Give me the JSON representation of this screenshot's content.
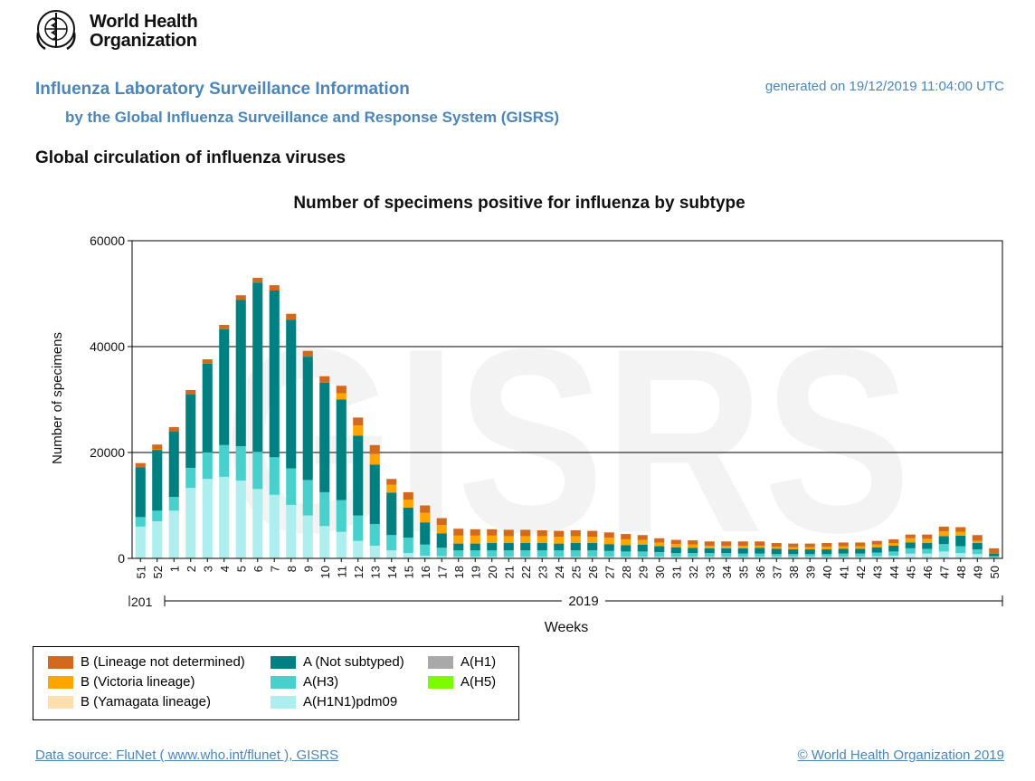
{
  "header": {
    "org_name_line1": "World Health",
    "org_name_line2": "Organization",
    "title": "Influenza Laboratory Surveillance Information",
    "subtitle": "by the Global Influenza Surveillance and Response System (GISRS)",
    "generated": "generated on 19/12/2019 11:04:00 UTC",
    "section_title": "Global circulation of influenza viruses"
  },
  "footer": {
    "data_source": "Data source: FluNet ( www.who.int/flunet ), GISRS",
    "copyright": "© World Health Organization 2019"
  },
  "colors": {
    "b_lineage_nd": "#d2691e",
    "b_victoria": "#ffa500",
    "b_yamagata": "#ffdead",
    "a_not_subtyped": "#008080",
    "a_h3": "#48d1cc",
    "a_h1n1pdm09": "#afeeee",
    "a_h1": "#a9a9a9",
    "a_h5": "#7cfc00",
    "header_blue": "#4a86b9",
    "watermark": "#f3f3f3"
  },
  "chart_data": {
    "type": "bar",
    "stacked": true,
    "title": "Number of specimens positive for influenza by subtype",
    "xlabel": "Weeks",
    "ylabel": "Number of specimens",
    "ylim": [
      0,
      60000
    ],
    "yticks": [
      0,
      20000,
      40000,
      60000
    ],
    "ytick_labels": [
      "0",
      "20000",
      "40000",
      "60000"
    ],
    "grid": true,
    "watermark": "GISRS",
    "year_labels": [
      "201",
      "2019"
    ],
    "categories": [
      "51",
      "52",
      "1",
      "2",
      "3",
      "4",
      "5",
      "6",
      "7",
      "8",
      "9",
      "10",
      "11",
      "12",
      "13",
      "14",
      "15",
      "16",
      "17",
      "18",
      "19",
      "20",
      "21",
      "22",
      "23",
      "24",
      "25",
      "26",
      "27",
      "28",
      "29",
      "30",
      "31",
      "32",
      "33",
      "34",
      "35",
      "36",
      "37",
      "38",
      "39",
      "40",
      "41",
      "42",
      "43",
      "44",
      "45",
      "46",
      "47",
      "48",
      "49",
      "50"
    ],
    "series": [
      {
        "name": "A(H1N1)pdm09",
        "color_key": "a_h1n1pdm09",
        "values": [
          6000,
          7000,
          9000,
          13300,
          15000,
          15400,
          14700,
          13100,
          12000,
          10100,
          8100,
          6100,
          5000,
          3300,
          2400,
          1500,
          1000,
          500,
          400,
          300,
          300,
          300,
          300,
          300,
          300,
          300,
          300,
          300,
          300,
          300,
          300,
          300,
          300,
          300,
          300,
          300,
          300,
          300,
          300,
          300,
          300,
          300,
          300,
          300,
          400,
          500,
          900,
          900,
          1300,
          1000,
          800,
          200
        ]
      },
      {
        "name": "A(H3)",
        "color_key": "a_h3",
        "values": [
          1800,
          2000,
          2600,
          3800,
          5000,
          6000,
          6500,
          7000,
          7100,
          6900,
          6700,
          6400,
          6000,
          4800,
          4100,
          2900,
          2900,
          2100,
          1600,
          1200,
          1200,
          1200,
          1200,
          1200,
          1200,
          1200,
          1200,
          1200,
          1100,
          1000,
          1000,
          900,
          700,
          700,
          700,
          700,
          600,
          600,
          500,
          500,
          500,
          500,
          600,
          600,
          700,
          800,
          1000,
          900,
          1400,
          1300,
          900,
          200
        ]
      },
      {
        "name": "A(Not subtyped)",
        "color_key": "a_not_subtyped",
        "values": [
          9400,
          11500,
          12400,
          13900,
          16800,
          21900,
          27600,
          32000,
          31500,
          28100,
          23300,
          20700,
          19000,
          15100,
          11200,
          8000,
          5700,
          4200,
          2700,
          1300,
          1300,
          1400,
          1400,
          1400,
          1400,
          1300,
          1400,
          1400,
          1300,
          1200,
          1300,
          1100,
          1100,
          1000,
          900,
          900,
          1000,
          1100,
          1000,
          900,
          900,
          900,
          900,
          900,
          1000,
          1100,
          1100,
          1100,
          1500,
          2000,
          1200,
          500
        ]
      },
      {
        "name": "A(H1)",
        "color_key": "a_h1",
        "values": [
          0,
          0,
          0,
          0,
          0,
          0,
          0,
          0,
          0,
          0,
          0,
          0,
          0,
          0,
          0,
          0,
          0,
          0,
          0,
          0,
          0,
          0,
          0,
          0,
          0,
          0,
          0,
          0,
          0,
          0,
          0,
          0,
          0,
          0,
          0,
          0,
          0,
          0,
          0,
          0,
          0,
          0,
          0,
          0,
          0,
          0,
          0,
          0,
          0,
          0,
          0,
          0
        ]
      },
      {
        "name": "A(H5)",
        "color_key": "a_h5",
        "values": [
          0,
          0,
          0,
          0,
          0,
          0,
          0,
          0,
          0,
          0,
          0,
          0,
          0,
          0,
          0,
          0,
          0,
          0,
          0,
          0,
          0,
          0,
          0,
          0,
          0,
          0,
          0,
          0,
          0,
          0,
          0,
          0,
          0,
          0,
          0,
          0,
          0,
          0,
          0,
          0,
          0,
          0,
          0,
          0,
          0,
          0,
          0,
          0,
          0,
          0,
          0,
          0
        ]
      },
      {
        "name": "B (Yamagata lineage)",
        "color_key": "b_yamagata",
        "values": [
          0,
          0,
          0,
          0,
          0,
          0,
          0,
          0,
          0,
          0,
          0,
          0,
          0,
          0,
          0,
          0,
          0,
          0,
          0,
          0,
          0,
          0,
          0,
          0,
          0,
          0,
          0,
          0,
          0,
          0,
          0,
          0,
          0,
          0,
          0,
          0,
          0,
          0,
          0,
          0,
          0,
          0,
          0,
          0,
          0,
          0,
          0,
          0,
          0,
          0,
          0,
          0
        ]
      },
      {
        "name": "B (Victoria lineage)",
        "color_key": "b_victoria",
        "values": [
          0,
          100,
          0,
          0,
          0,
          0,
          0,
          0,
          0,
          0,
          0,
          0,
          1200,
          1900,
          2000,
          1500,
          1500,
          1800,
          1600,
          1500,
          1500,
          1400,
          1300,
          1300,
          1300,
          1300,
          1300,
          1200,
          1200,
          1100,
          900,
          700,
          600,
          600,
          500,
          500,
          500,
          400,
          400,
          400,
          400,
          500,
          500,
          500,
          500,
          500,
          800,
          800,
          900,
          700,
          400,
          0
        ]
      },
      {
        "name": "B (Lineage not determined)",
        "color_key": "b_lineage_nd",
        "values": [
          800,
          900,
          800,
          800,
          800,
          800,
          900,
          900,
          1000,
          1100,
          1100,
          1200,
          1400,
          1500,
          1700,
          1100,
          1400,
          1400,
          1300,
          1300,
          1200,
          1200,
          1200,
          1200,
          1100,
          1100,
          1100,
          1100,
          1000,
          1000,
          900,
          800,
          800,
          800,
          800,
          800,
          800,
          800,
          700,
          700,
          700,
          700,
          700,
          700,
          700,
          700,
          700,
          800,
          900,
          900,
          1100,
          1000
        ]
      }
    ],
    "legend": [
      {
        "label": "B (Lineage not determined)",
        "color_key": "b_lineage_nd"
      },
      {
        "label": "B (Victoria lineage)",
        "color_key": "b_victoria"
      },
      {
        "label": "B (Yamagata lineage)",
        "color_key": "b_yamagata"
      },
      {
        "label": "A (Not subtyped)",
        "color_key": "a_not_subtyped"
      },
      {
        "label": "A(H3)",
        "color_key": "a_h3"
      },
      {
        "label": "A(H1N1)pdm09",
        "color_key": "a_h1n1pdm09"
      },
      {
        "label": "A(H1)",
        "color_key": "a_h1"
      },
      {
        "label": "A(H5)",
        "color_key": "a_h5"
      }
    ]
  }
}
